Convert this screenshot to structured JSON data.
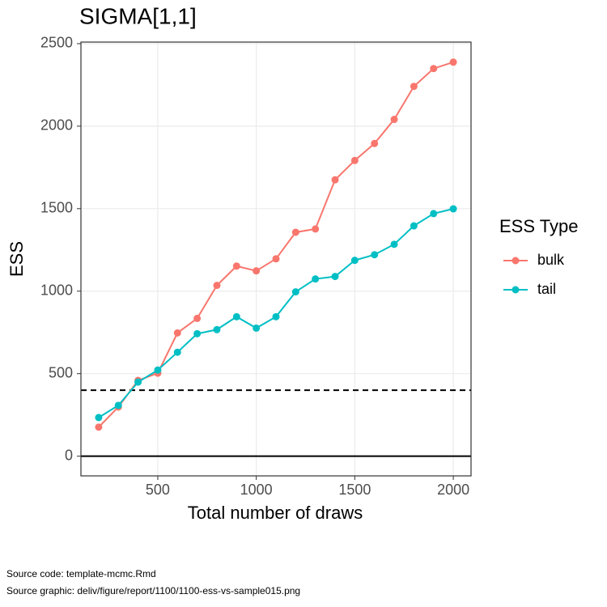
{
  "chart_data": {
    "type": "line",
    "title": "SIGMA[1,1]",
    "x_label": "Total number of draws",
    "y_label": "ESS",
    "x": [
      200,
      300,
      400,
      500,
      600,
      700,
      800,
      900,
      1000,
      1100,
      1200,
      1300,
      1400,
      1500,
      1600,
      1700,
      1800,
      1900,
      2000
    ],
    "series": [
      {
        "name": "bulk",
        "color": "#F8766D",
        "values": [
          176,
          298,
          459,
          503,
          747,
          835,
          1035,
          1152,
          1123,
          1196,
          1357,
          1377,
          1675,
          1792,
          1895,
          2041,
          2241,
          2349,
          2388
        ]
      },
      {
        "name": "tail",
        "color": "#00BFC4",
        "values": [
          234,
          308,
          449,
          522,
          630,
          742,
          767,
          845,
          776,
          845,
          996,
          1074,
          1089,
          1187,
          1221,
          1284,
          1396,
          1470,
          1499
        ]
      }
    ],
    "xlim": [
      110,
      2090
    ],
    "xticks": [
      500,
      1000,
      1500,
      2000
    ],
    "ylim": [
      -119.5,
      2509.5
    ],
    "yticks": [
      0,
      500,
      1000,
      1500,
      2000,
      2500
    ],
    "grid": true,
    "hlines": [
      {
        "value": 0,
        "style": "solid"
      },
      {
        "value": 400,
        "style": "dashed"
      }
    ],
    "legend_title": "ESS Type",
    "legend_position": "right",
    "footnotes": [
      "Source code: template-mcmc.Rmd",
      "Source graphic: deliv/figure/report/1100/1100-ess-vs-sample015.png"
    ]
  }
}
